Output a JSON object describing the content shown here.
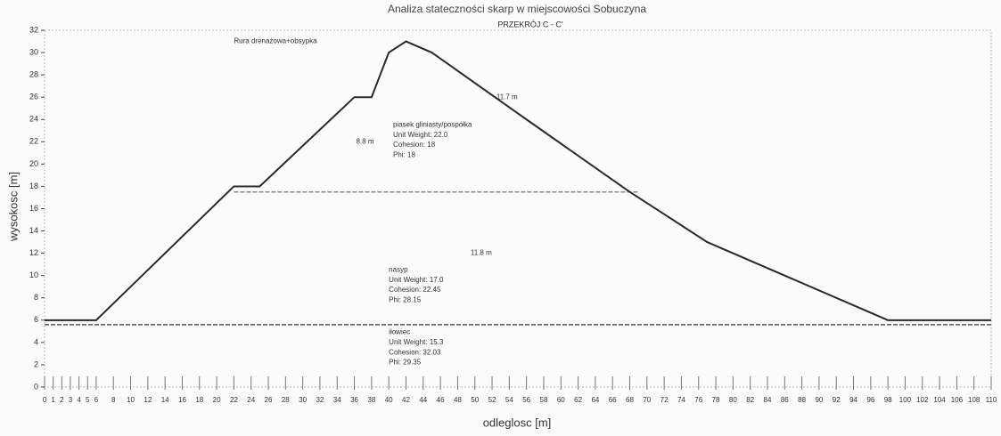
{
  "chart_data": {
    "type": "line",
    "title": "Analiza stateczności skarp w miejscowości Sobuczyna",
    "subtitle": "PRZEKRÓJ C - C'",
    "xlabel": "odleglosc [m]",
    "ylabel": "wysokosc [m]",
    "xlim": [
      0,
      110
    ],
    "ylim": [
      0,
      32
    ],
    "xticks": [
      0,
      1,
      2,
      3,
      4,
      5,
      6,
      8,
      10,
      12,
      14,
      16,
      18,
      20,
      22,
      24,
      26,
      28,
      30,
      32,
      34,
      36,
      38,
      40,
      42,
      44,
      46,
      48,
      50,
      52,
      54,
      56,
      58,
      60,
      62,
      64,
      66,
      68,
      70,
      72,
      74,
      76,
      78,
      80,
      82,
      84,
      86,
      88,
      90,
      92,
      94,
      96,
      98,
      100,
      102,
      104,
      106,
      108,
      110
    ],
    "yticks": [
      0,
      2,
      4,
      6,
      8,
      10,
      12,
      14,
      16,
      18,
      20,
      22,
      24,
      26,
      28,
      30,
      32
    ],
    "series": [
      {
        "color": "#2a2a2a",
        "x": [
          0,
          6,
          22,
          25,
          36,
          38,
          40,
          42,
          45,
          56,
          68,
          77,
          98,
          110
        ],
        "values": [
          6,
          6,
          18,
          18,
          26,
          26,
          30,
          31,
          30,
          24,
          17.5,
          13,
          6,
          6
        ]
      }
    ],
    "boundaries": [
      {
        "color": "#8a8a8a",
        "x": [
          22,
          69
        ],
        "values": [
          17.5,
          17.5
        ]
      },
      {
        "color": "#555555",
        "x": [
          0,
          110
        ],
        "values": [
          5.6,
          5.6
        ]
      }
    ],
    "annotations": [
      {
        "text": "Rura drenażowa+obsypka",
        "x": 22,
        "y": 31
      },
      {
        "text": "piasek gliniasty/pospółka",
        "x": 40.5,
        "y": 23.5
      },
      {
        "text": "Unit Weight: 22.0",
        "x": 40.5,
        "y": 22.6
      },
      {
        "text": "Cohesion: 18",
        "x": 40.5,
        "y": 21.7
      },
      {
        "text": "Phi: 18",
        "x": 40.5,
        "y": 20.8
      },
      {
        "text": "nasyp",
        "x": 40,
        "y": 10.5
      },
      {
        "text": "Unit Weight: 17.0",
        "x": 40,
        "y": 9.6
      },
      {
        "text": "Cohesion: 22.45",
        "x": 40,
        "y": 8.7
      },
      {
        "text": "Phi: 28.15",
        "x": 40,
        "y": 7.8
      },
      {
        "text": "iłowiec",
        "x": 40,
        "y": 4.9
      },
      {
        "text": "Unit Weight: 15.3",
        "x": 40,
        "y": 4.0
      },
      {
        "text": "Cohesion: 32.03",
        "x": 40,
        "y": 3.1
      },
      {
        "text": "Phi: 29.35",
        "x": 40,
        "y": 2.2
      },
      {
        "text": "11.7 m",
        "x": 52.5,
        "y": 26
      },
      {
        "text": "11.8 m",
        "x": 49.5,
        "y": 12
      },
      {
        "text": "8.8 m",
        "x": 36.2,
        "y": 22
      }
    ]
  }
}
